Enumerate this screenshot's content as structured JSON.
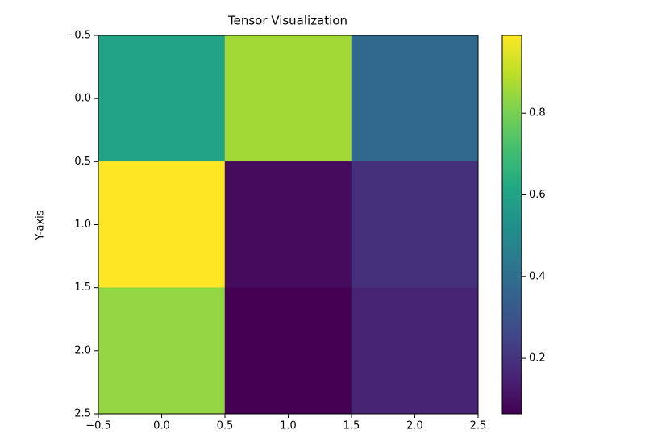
{
  "chart_data": {
    "type": "heatmap",
    "title": "Tensor Visualization",
    "ylabel": "Y-axis",
    "values": [
      [
        0.6,
        0.86,
        0.38
      ],
      [
        0.99,
        0.09,
        0.19
      ],
      [
        0.84,
        0.064,
        0.157
      ]
    ],
    "colormap": "viridis",
    "clim": [
      0.064,
      0.99
    ],
    "xlim": [
      -0.5,
      2.5
    ],
    "ylim": [
      -0.5,
      2.5
    ],
    "yaxis_inverted": true,
    "xticks": [
      {
        "value": -0.5,
        "label": "−0.5"
      },
      {
        "value": 0,
        "label": "0.0"
      },
      0.5,
      {
        "value": 1,
        "label": "1.0"
      },
      1.5,
      {
        "value": 2,
        "label": "2.0"
      },
      2.5
    ],
    "yticks": [
      {
        "value": -0.5,
        "label": "−0.5"
      },
      {
        "value": 0,
        "label": "0.0"
      },
      0.5,
      {
        "value": 1,
        "label": "1.0"
      },
      1.5,
      {
        "value": 2,
        "label": "2.0"
      },
      2.5
    ],
    "cticks": [
      0.2,
      0.4,
      0.6,
      0.8
    ]
  }
}
